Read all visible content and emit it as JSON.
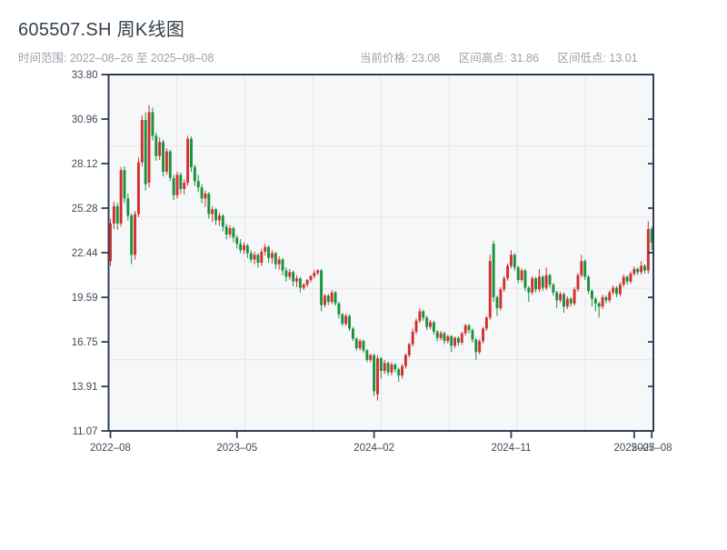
{
  "header": {
    "title": "605507.SH 周K线图",
    "time_range": "时间范围: 2022–08–26 至 2025–08–08",
    "current_price": "当前价格: 23.08",
    "range_high": "区间高点: 31.86",
    "range_low": "区间低点: 13.01"
  },
  "chart_data": {
    "type": "candlestick",
    "title": "605507.SH 周K线图",
    "symbol": "605507.SH",
    "freq": "weekly",
    "start_date": "2022-08-26",
    "end_date": "2025-08-08",
    "current_price": 23.08,
    "range_high": 31.86,
    "range_low": 13.01,
    "y_axis": {
      "min": 11.07,
      "max": 33.8,
      "ticks": [
        33.8,
        30.96,
        28.12,
        25.28,
        22.44,
        19.59,
        16.75,
        13.91,
        11.07
      ]
    },
    "x_axis": {
      "ticks": [
        {
          "label": "2022–08",
          "week": 0
        },
        {
          "label": "2023–05",
          "week": 36
        },
        {
          "label": "2024–02",
          "week": 75
        },
        {
          "label": "2024–11",
          "week": 114
        },
        {
          "label": "2025–07",
          "week": 149
        },
        {
          "label": "2025–08",
          "week": 154
        }
      ]
    },
    "grid": {
      "vertical_divisions": 8,
      "horizontal_divisions": 5
    },
    "legend": "none",
    "colors": {
      "up": "#d32f2f",
      "down": "#18923c",
      "plot_bg": "#f5f7f9",
      "grid": "#e4e6ea",
      "axis": "#2e3f50",
      "tick_text": "#3c4a5a"
    },
    "ohlc": [
      [
        21.9,
        24.6,
        21.6,
        24.3
      ],
      [
        24.3,
        25.7,
        23.95,
        25.4
      ],
      [
        25.4,
        25.6,
        23.9,
        24.3
      ],
      [
        24.3,
        27.9,
        24.1,
        27.7
      ],
      [
        27.7,
        27.95,
        25.6,
        25.9
      ],
      [
        25.9,
        26.2,
        24.5,
        24.8
      ],
      [
        24.8,
        24.95,
        21.7,
        22.3
      ],
      [
        22.3,
        25.1,
        22.0,
        24.9
      ],
      [
        24.9,
        28.5,
        24.7,
        28.2
      ],
      [
        28.2,
        31.2,
        27.95,
        30.9
      ],
      [
        30.9,
        31.4,
        26.4,
        26.8
      ],
      [
        26.9,
        31.86,
        26.6,
        31.4
      ],
      [
        31.4,
        31.7,
        29.6,
        29.9
      ],
      [
        29.9,
        30.1,
        28.3,
        28.6
      ],
      [
        28.6,
        29.8,
        28.35,
        29.5
      ],
      [
        29.5,
        29.65,
        27.3,
        27.6
      ],
      [
        27.6,
        29.1,
        27.4,
        28.9
      ],
      [
        28.9,
        29.0,
        27.0,
        27.2
      ],
      [
        27.2,
        27.4,
        25.8,
        26.1
      ],
      [
        26.1,
        27.6,
        25.9,
        27.4
      ],
      [
        27.4,
        27.55,
        26.2,
        26.5
      ],
      [
        26.5,
        27.1,
        26.15,
        26.9
      ],
      [
        26.9,
        29.9,
        26.7,
        29.7
      ],
      [
        29.7,
        29.85,
        27.6,
        27.9
      ],
      [
        27.9,
        28.05,
        26.7,
        27.0
      ],
      [
        27.0,
        27.4,
        26.3,
        26.6
      ],
      [
        26.6,
        26.8,
        25.6,
        25.9
      ],
      [
        25.9,
        26.4,
        25.35,
        26.2
      ],
      [
        26.2,
        26.3,
        24.6,
        24.9
      ],
      [
        24.9,
        25.4,
        24.4,
        25.2
      ],
      [
        25.2,
        25.3,
        24.2,
        24.5
      ],
      [
        24.5,
        25.0,
        24.15,
        24.8
      ],
      [
        24.8,
        24.9,
        23.8,
        24.1
      ],
      [
        24.1,
        24.3,
        23.3,
        23.6
      ],
      [
        23.6,
        24.2,
        23.4,
        24.0
      ],
      [
        24.0,
        24.1,
        23.1,
        23.4
      ],
      [
        23.4,
        23.55,
        22.7,
        23.0
      ],
      [
        23.0,
        23.3,
        22.4,
        22.6
      ],
      [
        22.6,
        23.1,
        22.35,
        22.9
      ],
      [
        22.9,
        23.0,
        22.1,
        22.4
      ],
      [
        22.4,
        22.6,
        21.8,
        22.0
      ],
      [
        22.0,
        22.5,
        21.7,
        22.3
      ],
      [
        22.3,
        22.4,
        21.5,
        21.8
      ],
      [
        21.8,
        22.7,
        21.6,
        22.5
      ],
      [
        22.5,
        23.0,
        22.25,
        22.8
      ],
      [
        22.8,
        22.9,
        21.8,
        22.1
      ],
      [
        22.1,
        22.6,
        21.75,
        22.4
      ],
      [
        22.4,
        22.5,
        21.4,
        21.7
      ],
      [
        21.7,
        22.2,
        21.35,
        22.0
      ],
      [
        22.0,
        22.1,
        21.0,
        21.3
      ],
      [
        21.3,
        21.5,
        20.6,
        20.9
      ],
      [
        20.9,
        21.4,
        20.7,
        21.2
      ],
      [
        21.2,
        21.3,
        20.3,
        20.6
      ],
      [
        20.6,
        21.0,
        20.25,
        20.8
      ],
      [
        20.8,
        20.9,
        19.9,
        20.2
      ],
      [
        20.2,
        20.5,
        20.05,
        20.4
      ],
      [
        20.4,
        20.75,
        20.25,
        20.7
      ],
      [
        20.7,
        21.0,
        20.55,
        20.95
      ],
      [
        20.95,
        21.35,
        20.8,
        21.15
      ],
      [
        21.15,
        21.4,
        21.0,
        21.3
      ],
      [
        21.3,
        21.4,
        18.7,
        19.1
      ],
      [
        19.1,
        19.8,
        18.95,
        19.7
      ],
      [
        19.7,
        19.8,
        19.1,
        19.3
      ],
      [
        19.3,
        20.05,
        19.15,
        19.9
      ],
      [
        19.9,
        20.0,
        19.05,
        19.2
      ],
      [
        19.2,
        19.3,
        18.25,
        18.5
      ],
      [
        18.5,
        18.6,
        17.75,
        17.9
      ],
      [
        17.9,
        18.55,
        17.75,
        18.4
      ],
      [
        18.4,
        18.5,
        17.45,
        17.6
      ],
      [
        17.6,
        17.7,
        16.8,
        16.95
      ],
      [
        16.95,
        17.05,
        16.2,
        16.35
      ],
      [
        16.35,
        16.95,
        16.2,
        16.8
      ],
      [
        16.8,
        16.9,
        16.05,
        16.2
      ],
      [
        16.2,
        16.3,
        15.45,
        15.6
      ],
      [
        15.6,
        16.0,
        15.45,
        15.9
      ],
      [
        15.9,
        16.0,
        13.3,
        13.6
      ],
      [
        13.4,
        15.9,
        13.01,
        15.7
      ],
      [
        15.7,
        15.8,
        14.4,
        14.9
      ],
      [
        14.9,
        15.6,
        14.7,
        15.4
      ],
      [
        15.4,
        15.5,
        14.6,
        14.8
      ],
      [
        14.8,
        15.45,
        14.6,
        15.3
      ],
      [
        15.3,
        15.4,
        14.8,
        15.0
      ],
      [
        15.0,
        15.1,
        14.2,
        14.6
      ],
      [
        14.6,
        15.35,
        14.4,
        15.2
      ],
      [
        15.2,
        16.0,
        15.05,
        15.9
      ],
      [
        15.9,
        16.7,
        15.75,
        16.6
      ],
      [
        16.6,
        17.6,
        16.45,
        17.4
      ],
      [
        17.4,
        18.25,
        17.25,
        18.1
      ],
      [
        18.1,
        18.9,
        17.95,
        18.7
      ],
      [
        18.7,
        18.8,
        18.1,
        18.3
      ],
      [
        18.3,
        18.4,
        17.5,
        17.7
      ],
      [
        17.7,
        18.15,
        17.55,
        18.0
      ],
      [
        18.0,
        18.1,
        17.2,
        17.4
      ],
      [
        17.4,
        17.5,
        16.8,
        17.0
      ],
      [
        17.0,
        17.45,
        16.85,
        17.3
      ],
      [
        17.3,
        17.4,
        16.6,
        16.8
      ],
      [
        16.8,
        17.2,
        16.65,
        17.1
      ],
      [
        17.1,
        17.2,
        16.1,
        16.5
      ],
      [
        16.5,
        17.1,
        16.35,
        17.0
      ],
      [
        17.0,
        17.1,
        16.5,
        16.7
      ],
      [
        16.7,
        17.4,
        16.55,
        17.3
      ],
      [
        17.3,
        17.9,
        17.15,
        17.8
      ],
      [
        17.8,
        17.9,
        17.3,
        17.5
      ],
      [
        17.5,
        17.6,
        16.7,
        16.9
      ],
      [
        16.9,
        17.0,
        15.6,
        16.1
      ],
      [
        16.1,
        16.9,
        15.95,
        16.8
      ],
      [
        16.8,
        17.7,
        16.65,
        17.6
      ],
      [
        17.6,
        18.4,
        17.45,
        18.3
      ],
      [
        18.3,
        22.3,
        18.15,
        21.9
      ],
      [
        23.0,
        23.2,
        19.3,
        19.6
      ],
      [
        19.6,
        19.7,
        18.4,
        18.9
      ],
      [
        18.9,
        20.25,
        18.75,
        20.1
      ],
      [
        20.1,
        20.95,
        19.95,
        20.8
      ],
      [
        20.8,
        21.75,
        20.65,
        21.6
      ],
      [
        21.6,
        22.6,
        21.45,
        22.3
      ],
      [
        22.3,
        22.4,
        21.3,
        21.5
      ],
      [
        21.5,
        21.6,
        20.5,
        20.7
      ],
      [
        20.7,
        21.45,
        20.55,
        21.3
      ],
      [
        21.3,
        21.4,
        20.0,
        20.2
      ],
      [
        20.2,
        20.3,
        19.3,
        19.9
      ],
      [
        19.9,
        20.95,
        19.75,
        20.8
      ],
      [
        20.8,
        20.9,
        19.9,
        20.1
      ],
      [
        20.1,
        21.4,
        19.95,
        20.9
      ],
      [
        20.9,
        21.0,
        20.0,
        20.2
      ],
      [
        20.2,
        21.5,
        20.05,
        21.0
      ],
      [
        21.0,
        21.1,
        20.2,
        20.4
      ],
      [
        20.4,
        20.5,
        19.7,
        19.9
      ],
      [
        19.9,
        20.0,
        18.9,
        19.4
      ],
      [
        19.4,
        19.95,
        19.25,
        19.8
      ],
      [
        19.8,
        19.9,
        18.6,
        19.0
      ],
      [
        19.0,
        19.65,
        18.85,
        19.5
      ],
      [
        19.5,
        19.6,
        19.0,
        19.2
      ],
      [
        19.2,
        20.25,
        19.05,
        20.1
      ],
      [
        20.1,
        21.15,
        19.95,
        21.0
      ],
      [
        21.0,
        22.3,
        20.85,
        21.9
      ],
      [
        21.9,
        22.0,
        20.7,
        20.9
      ],
      [
        20.9,
        21.0,
        19.8,
        20.0
      ],
      [
        20.0,
        20.1,
        19.0,
        19.5
      ],
      [
        19.5,
        19.6,
        18.7,
        19.2
      ],
      [
        19.2,
        19.3,
        18.3,
        19.0
      ],
      [
        19.0,
        19.75,
        18.85,
        19.6
      ],
      [
        19.6,
        19.7,
        19.2,
        19.4
      ],
      [
        19.4,
        20.05,
        19.25,
        19.9
      ],
      [
        19.9,
        20.35,
        19.75,
        20.2
      ],
      [
        20.2,
        20.3,
        19.6,
        19.8
      ],
      [
        19.8,
        20.55,
        19.65,
        20.4
      ],
      [
        20.4,
        21.05,
        20.25,
        20.9
      ],
      [
        20.9,
        21.0,
        20.4,
        20.6
      ],
      [
        20.6,
        21.25,
        20.45,
        21.1
      ],
      [
        21.1,
        21.55,
        20.95,
        21.4
      ],
      [
        21.4,
        21.5,
        21.0,
        21.2
      ],
      [
        21.2,
        21.9,
        21.05,
        21.6
      ],
      [
        21.6,
        21.7,
        21.1,
        21.3
      ],
      [
        21.3,
        24.45,
        21.1,
        23.95
      ],
      [
        23.95,
        24.1,
        22.6,
        23.08
      ]
    ]
  }
}
